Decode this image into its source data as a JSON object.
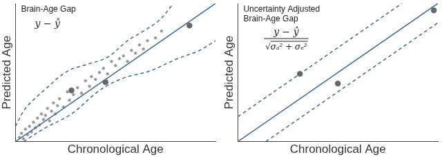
{
  "chart_data": [
    {
      "type": "scatter",
      "x_label": "Chronological Age",
      "y_label": "Predicted Age",
      "annotation": {
        "label": [
          "Brain-Age Gap"
        ],
        "formula": {
          "text": "y − ŷ"
        }
      },
      "xlim": [
        0,
        100
      ],
      "ylim": [
        0,
        100
      ],
      "tick_labels": false,
      "grid": false,
      "series": [
        {
          "type": "line",
          "line_style": "solid",
          "color": "#3d6a99",
          "x": [
            0,
            100
          ],
          "values": [
            0,
            100
          ]
        },
        {
          "type": "line",
          "line_style": "dashed",
          "color": "#3d6a99",
          "x": [
            0,
            5,
            15,
            26,
            36,
            46,
            56,
            64,
            72,
            79
          ],
          "values": [
            11,
            24,
            38,
            51,
            56,
            61,
            73,
            80,
            88,
            100
          ]
        },
        {
          "type": "line",
          "line_style": "dashed",
          "color": "#3d6a99",
          "x": [
            4,
            15,
            28,
            42,
            54,
            67,
            81,
            92,
            100
          ],
          "values": [
            0,
            10,
            20,
            37,
            46,
            51,
            60,
            66,
            73
          ]
        },
        {
          "type": "scatter",
          "marker": "point",
          "color": "#999999",
          "x": [
            2,
            3,
            4,
            5,
            6,
            7,
            8,
            9,
            10,
            11,
            12,
            13,
            14,
            15,
            16,
            17,
            18,
            19,
            20,
            21,
            22,
            24,
            26,
            27,
            29,
            31,
            33,
            35,
            37,
            38,
            40,
            42,
            44,
            46,
            48,
            50,
            52,
            54,
            56,
            58,
            60,
            62,
            64,
            66,
            70,
            73
          ],
          "values": [
            3,
            6,
            2,
            9,
            5,
            11,
            7,
            14,
            10,
            17,
            12,
            20,
            16,
            19,
            24,
            15,
            22,
            28,
            20,
            26,
            31,
            25,
            36,
            30,
            34,
            39,
            35,
            44,
            40,
            47,
            45,
            50,
            53,
            49,
            58,
            55,
            60,
            62,
            58,
            66,
            64,
            70,
            67,
            73,
            75,
            80
          ]
        },
        {
          "type": "scatter",
          "marker": "circle",
          "color": "#666666",
          "x": [
            28,
            45,
            87
          ],
          "values": [
            37,
            43,
            84
          ]
        }
      ]
    },
    {
      "type": "scatter",
      "x_label": "Chronological Age",
      "y_label": "Predicted Age",
      "annotation": {
        "label": [
          "Uncertainty Adjusted",
          "Brain-Age Gap"
        ],
        "formula": {
          "numerator": "y − ŷ",
          "denominator": "√σₐ² + σₑ²"
        }
      },
      "xlim": [
        0,
        100
      ],
      "ylim": [
        0,
        100
      ],
      "tick_labels": false,
      "grid": false,
      "series": [
        {
          "type": "line",
          "line_style": "solid",
          "color": "#3d6a99",
          "x": [
            0,
            100
          ],
          "values": [
            0,
            100
          ]
        },
        {
          "type": "line",
          "line_style": "dashed",
          "color": "#3d6a99",
          "x": [
            0,
            82
          ],
          "values": [
            18,
            100
          ]
        },
        {
          "type": "line",
          "line_style": "dashed",
          "color": "#3d6a99",
          "x": [
            14,
            100
          ],
          "values": [
            0,
            86
          ]
        },
        {
          "type": "scatter",
          "marker": "circle",
          "color": "#666666",
          "x": [
            31,
            50,
            98
          ],
          "values": [
            49,
            42,
            95
          ]
        }
      ]
    }
  ]
}
